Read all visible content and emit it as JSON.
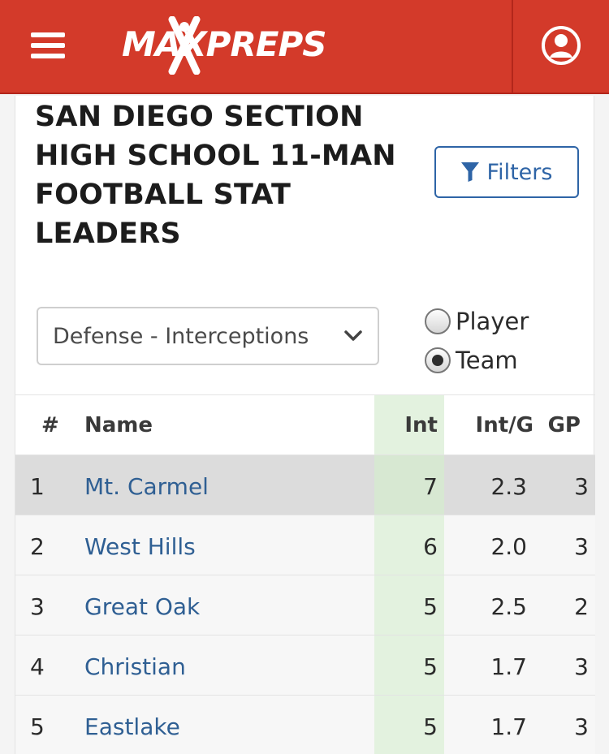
{
  "header": {
    "logo_text": "MAXPREPS",
    "brand_color": "#d33a2a",
    "menu_icon": "hamburger-icon",
    "user_icon": "user-icon"
  },
  "page": {
    "title": "SAN DIEGO SECTION HIGH SCHOOL 11-MAN FOOTBALL STAT LEADERS",
    "filters_label": "Filters",
    "stat_select": {
      "selected": "Defense - Interceptions"
    },
    "view_options": [
      {
        "label": "Player",
        "checked": false
      },
      {
        "label": "Team",
        "checked": true
      }
    ]
  },
  "table": {
    "columns": {
      "rank": "#",
      "name": "Name",
      "int": "Int",
      "int_g": "Int/G",
      "gp": "GP"
    },
    "rows": [
      {
        "rank": "1",
        "name": "Mt. Carmel",
        "int": "7",
        "int_g": "2.3",
        "gp": "3"
      },
      {
        "rank": "2",
        "name": "West Hills",
        "int": "6",
        "int_g": "2.0",
        "gp": "3"
      },
      {
        "rank": "3",
        "name": "Great Oak",
        "int": "5",
        "int_g": "2.5",
        "gp": "2"
      },
      {
        "rank": "4",
        "name": "Christian",
        "int": "5",
        "int_g": "1.7",
        "gp": "3"
      },
      {
        "rank": "5",
        "name": "Eastlake",
        "int": "5",
        "int_g": "1.7",
        "gp": "3"
      }
    ]
  }
}
